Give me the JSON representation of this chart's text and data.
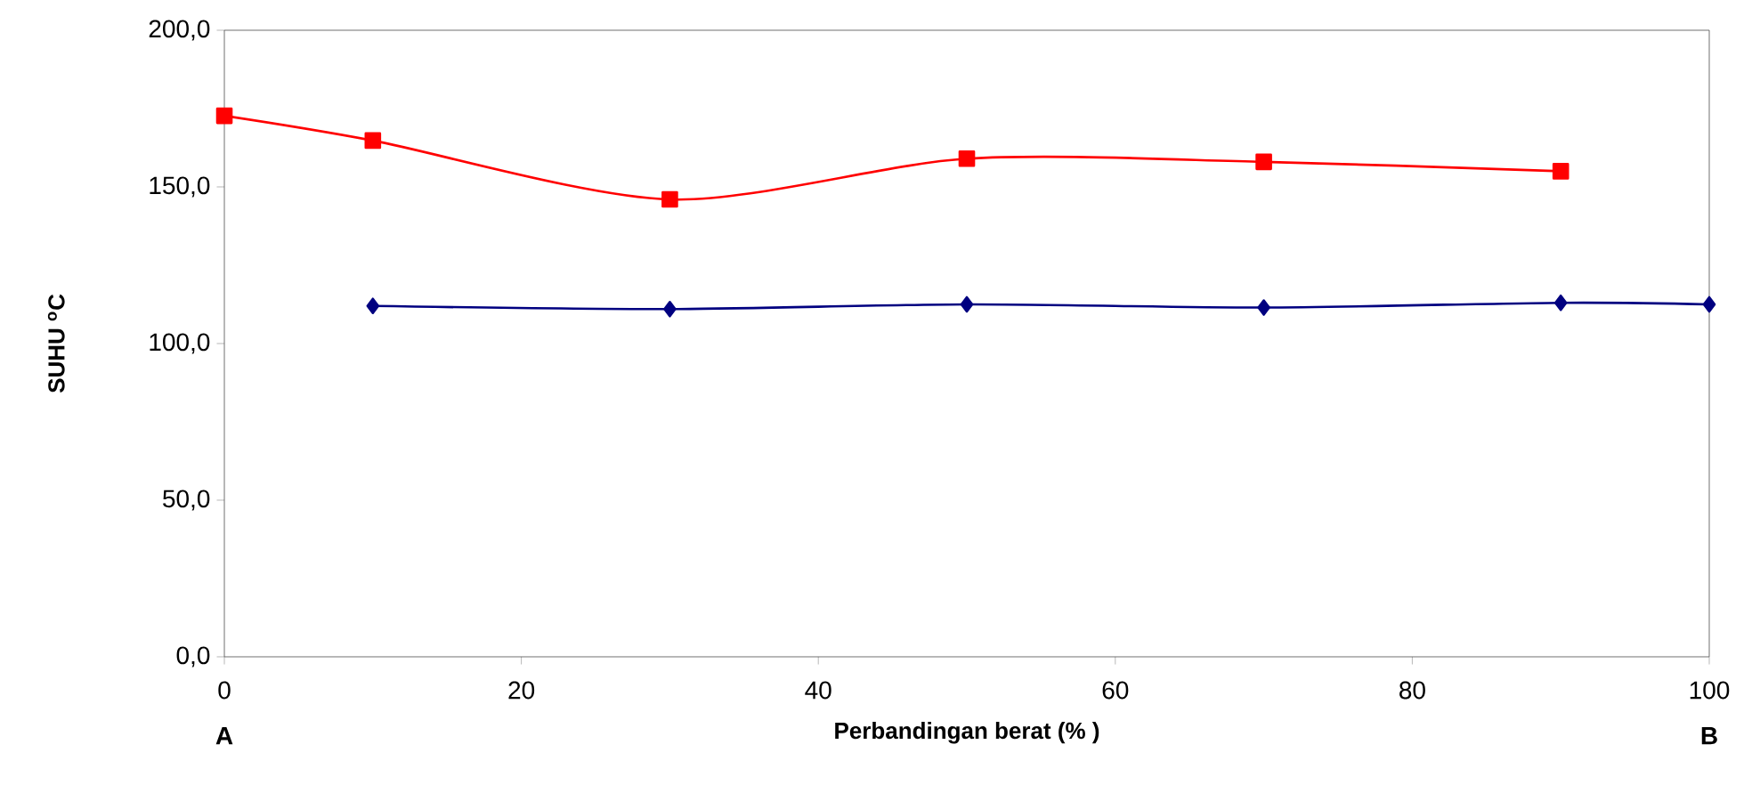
{
  "chart_data": {
    "type": "line",
    "xlabel": "Perbandingan berat  (% )",
    "ylabel": "SUHU $^{o}$C",
    "xlim": [
      0,
      100
    ],
    "xticks": [
      0,
      20,
      40,
      60,
      80,
      100
    ],
    "ylim": [
      0,
      200
    ],
    "yticks": [
      {
        "value": 0,
        "label": "0,0"
      },
      {
        "value": 50,
        "label": "50,0"
      },
      {
        "value": 100,
        "label": "100,0"
      },
      {
        "value": 150,
        "label": "150,0"
      },
      {
        "value": 200,
        "label": "200,0"
      }
    ],
    "grid": false,
    "line_style": "solid",
    "annotations": [
      "A",
      "B"
    ],
    "series": [
      {
        "color": "#ff0000",
        "marker": "square",
        "x": [
          0,
          10,
          30,
          50,
          70,
          90
        ],
        "values": [
          172.7,
          164.8,
          146,
          159,
          158,
          155
        ]
      },
      {
        "color": "#000080",
        "marker": "diamond",
        "x": [
          10,
          30,
          50,
          70,
          90,
          100
        ],
        "values": [
          112,
          111,
          112.5,
          111.5,
          113,
          112.5
        ]
      }
    ]
  }
}
